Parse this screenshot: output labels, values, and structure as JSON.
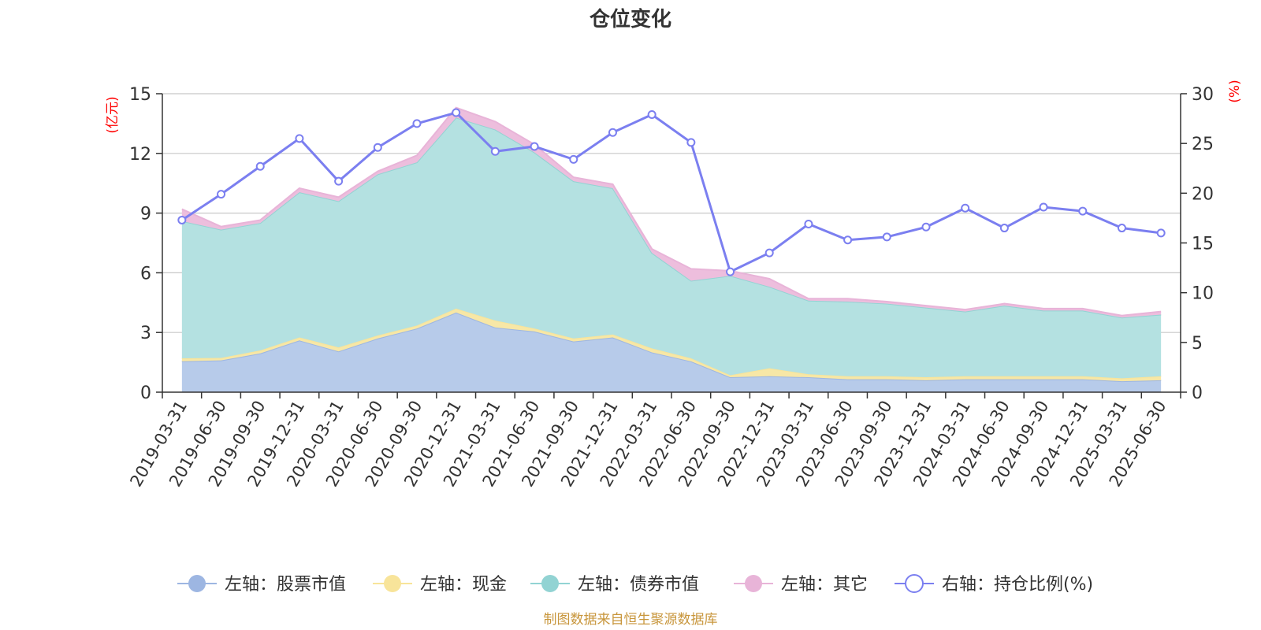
{
  "chart_data": {
    "type": "area",
    "title": "仓位变化",
    "left_unit": "(亿元)",
    "right_unit": "(%)",
    "source": "制图数据来自恒生聚源数据库",
    "y_left": {
      "min": 0,
      "max": 15,
      "ticks": [
        "0",
        "3",
        "6",
        "9",
        "12",
        "15"
      ]
    },
    "y_right": {
      "min": 0,
      "max": 30,
      "ticks": [
        "0",
        "5",
        "10",
        "15",
        "20",
        "25",
        "30"
      ]
    },
    "categories": [
      "2019-03-31",
      "2019-06-30",
      "2019-09-30",
      "2019-12-31",
      "2020-03-31",
      "2020-06-30",
      "2020-09-30",
      "2020-12-31",
      "2021-03-31",
      "2021-06-30",
      "2021-09-30",
      "2021-12-31",
      "2022-03-31",
      "2022-06-30",
      "2022-09-30",
      "2022-12-31",
      "2023-03-31",
      "2023-06-30",
      "2023-09-30",
      "2023-12-31",
      "2024-03-31",
      "2024-06-30",
      "2024-09-30",
      "2024-12-31",
      "2025-03-31",
      "2025-06-30"
    ],
    "stacked_series": [
      {
        "name": "左轴：股票市值",
        "color": "#9db6e2",
        "fill": "#b7cbea",
        "values": [
          1.55,
          1.6,
          1.95,
          2.6,
          2.05,
          2.7,
          3.2,
          4.0,
          3.25,
          3.05,
          2.55,
          2.75,
          2.0,
          1.55,
          0.75,
          0.8,
          0.75,
          0.65,
          0.65,
          0.6,
          0.65,
          0.65,
          0.65,
          0.65,
          0.55,
          0.6
        ]
      },
      {
        "name": "左轴：现金",
        "color": "#f8e49a",
        "fill": "#f7e7a6",
        "values": [
          0.15,
          0.12,
          0.15,
          0.15,
          0.2,
          0.15,
          0.15,
          0.2,
          0.35,
          0.15,
          0.15,
          0.15,
          0.2,
          0.15,
          0.1,
          0.4,
          0.15,
          0.15,
          0.15,
          0.15,
          0.15,
          0.15,
          0.15,
          0.15,
          0.15,
          0.2
        ]
      },
      {
        "name": "左轴：债券市值",
        "color": "#92d3d3",
        "fill": "#b4e1e1",
        "values": [
          6.9,
          6.45,
          6.4,
          7.3,
          7.35,
          8.1,
          8.2,
          9.6,
          9.6,
          8.85,
          7.9,
          7.35,
          4.8,
          3.9,
          5.0,
          4.1,
          3.7,
          3.75,
          3.65,
          3.5,
          3.25,
          3.55,
          3.3,
          3.3,
          3.05,
          3.1
        ]
      },
      {
        "name": "左轴：其它",
        "color": "#e8b4d8",
        "fill": "#edbedd",
        "values": [
          0.6,
          0.15,
          0.15,
          0.2,
          0.2,
          0.15,
          0.35,
          0.5,
          0.4,
          0.4,
          0.2,
          0.2,
          0.2,
          0.6,
          0.25,
          0.4,
          0.1,
          0.15,
          0.1,
          0.1,
          0.1,
          0.1,
          0.1,
          0.1,
          0.1,
          0.15
        ]
      }
    ],
    "line_series": {
      "name": "右轴：持仓比例(%)",
      "color": "#7b7ff0",
      "axis": "right",
      "values": [
        17.3,
        19.9,
        22.7,
        25.5,
        21.2,
        24.6,
        27.0,
        28.1,
        24.2,
        24.7,
        23.4,
        26.1,
        27.9,
        25.1,
        12.1,
        14.0,
        16.9,
        15.3,
        15.6,
        16.6,
        18.5,
        16.5,
        18.6,
        18.2,
        16.5,
        16.0
      ]
    },
    "grid": true,
    "legend_position": "bottom"
  }
}
